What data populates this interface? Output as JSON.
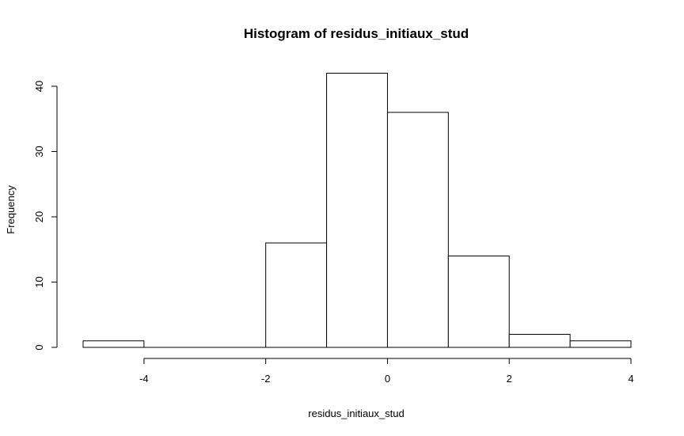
{
  "chart_data": {
    "type": "bar",
    "title": "Histogram of residus_initiaux_stud",
    "xlabel": "residus_initiaux_stud",
    "ylabel": "Frequency",
    "bins": [
      {
        "from": -5,
        "to": -4,
        "count": 1
      },
      {
        "from": -4,
        "to": -3,
        "count": 0
      },
      {
        "from": -3,
        "to": -2,
        "count": 0
      },
      {
        "from": -2,
        "to": -1,
        "count": 16
      },
      {
        "from": -1,
        "to": 0,
        "count": 42
      },
      {
        "from": 0,
        "to": 1,
        "count": 36
      },
      {
        "from": 1,
        "to": 2,
        "count": 14
      },
      {
        "from": 2,
        "to": 3,
        "count": 2
      },
      {
        "from": 3,
        "to": 4,
        "count": 1
      }
    ],
    "xticks": [
      "-4",
      "-2",
      "0",
      "2",
      "4"
    ],
    "yticks": [
      "0",
      "10",
      "20",
      "30",
      "40"
    ],
    "xlim": [
      -5,
      4
    ],
    "ylim": [
      0,
      42
    ],
    "grid": false
  }
}
